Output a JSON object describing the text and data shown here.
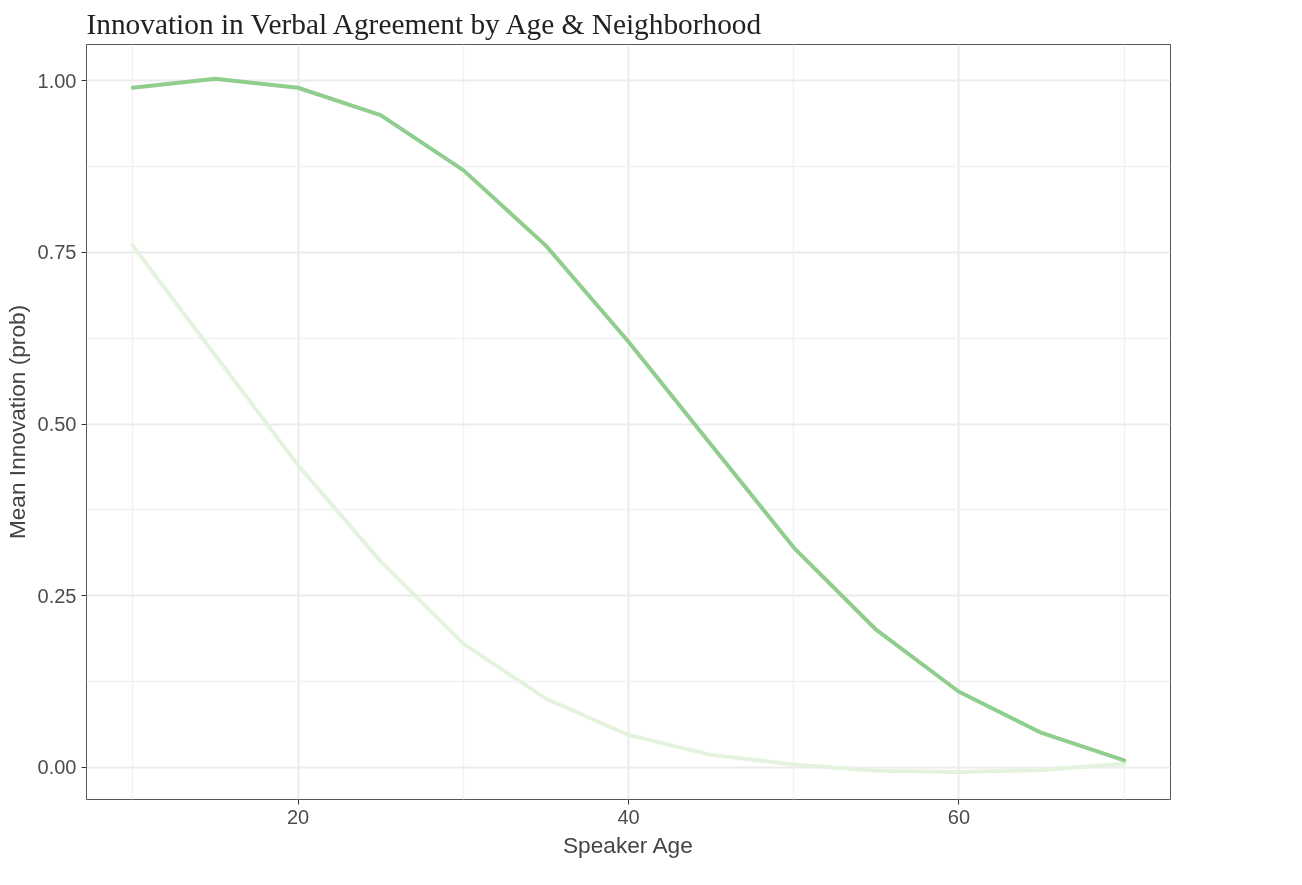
{
  "chart_data": {
    "type": "line",
    "title": "Innovation in Verbal Agreement by Age & Neighborhood",
    "xlabel": "Speaker Age",
    "ylabel": "Mean Innovation (prob)",
    "x": [
      10,
      15,
      20,
      25,
      30,
      35,
      40,
      45,
      50,
      55,
      60,
      65,
      70
    ],
    "series": [
      {
        "color": "#8fce8c",
        "values": [
          0.99,
          1.003,
          0.99,
          0.95,
          0.87,
          0.76,
          0.62,
          0.47,
          0.32,
          0.2,
          0.11,
          0.05,
          0.01
        ]
      },
      {
        "color": "#e3f3de",
        "values": [
          0.76,
          0.6,
          0.44,
          0.3,
          0.18,
          0.1,
          0.047,
          0.018,
          0.004,
          -0.005,
          -0.007,
          -0.004,
          0.005
        ]
      }
    ],
    "xlim": [
      7.2,
      72.8
    ],
    "ylim": [
      -0.047,
      1.053
    ],
    "xticks": [
      20,
      40,
      60
    ],
    "yticks": [
      {
        "value": 0,
        "label": "0.00"
      },
      {
        "value": 0.25,
        "label": "0.25"
      },
      {
        "value": 0.5,
        "label": "0.50"
      },
      {
        "value": 0.75,
        "label": "0.75"
      },
      {
        "value": 1,
        "label": "1.00"
      }
    ],
    "grid": true
  }
}
